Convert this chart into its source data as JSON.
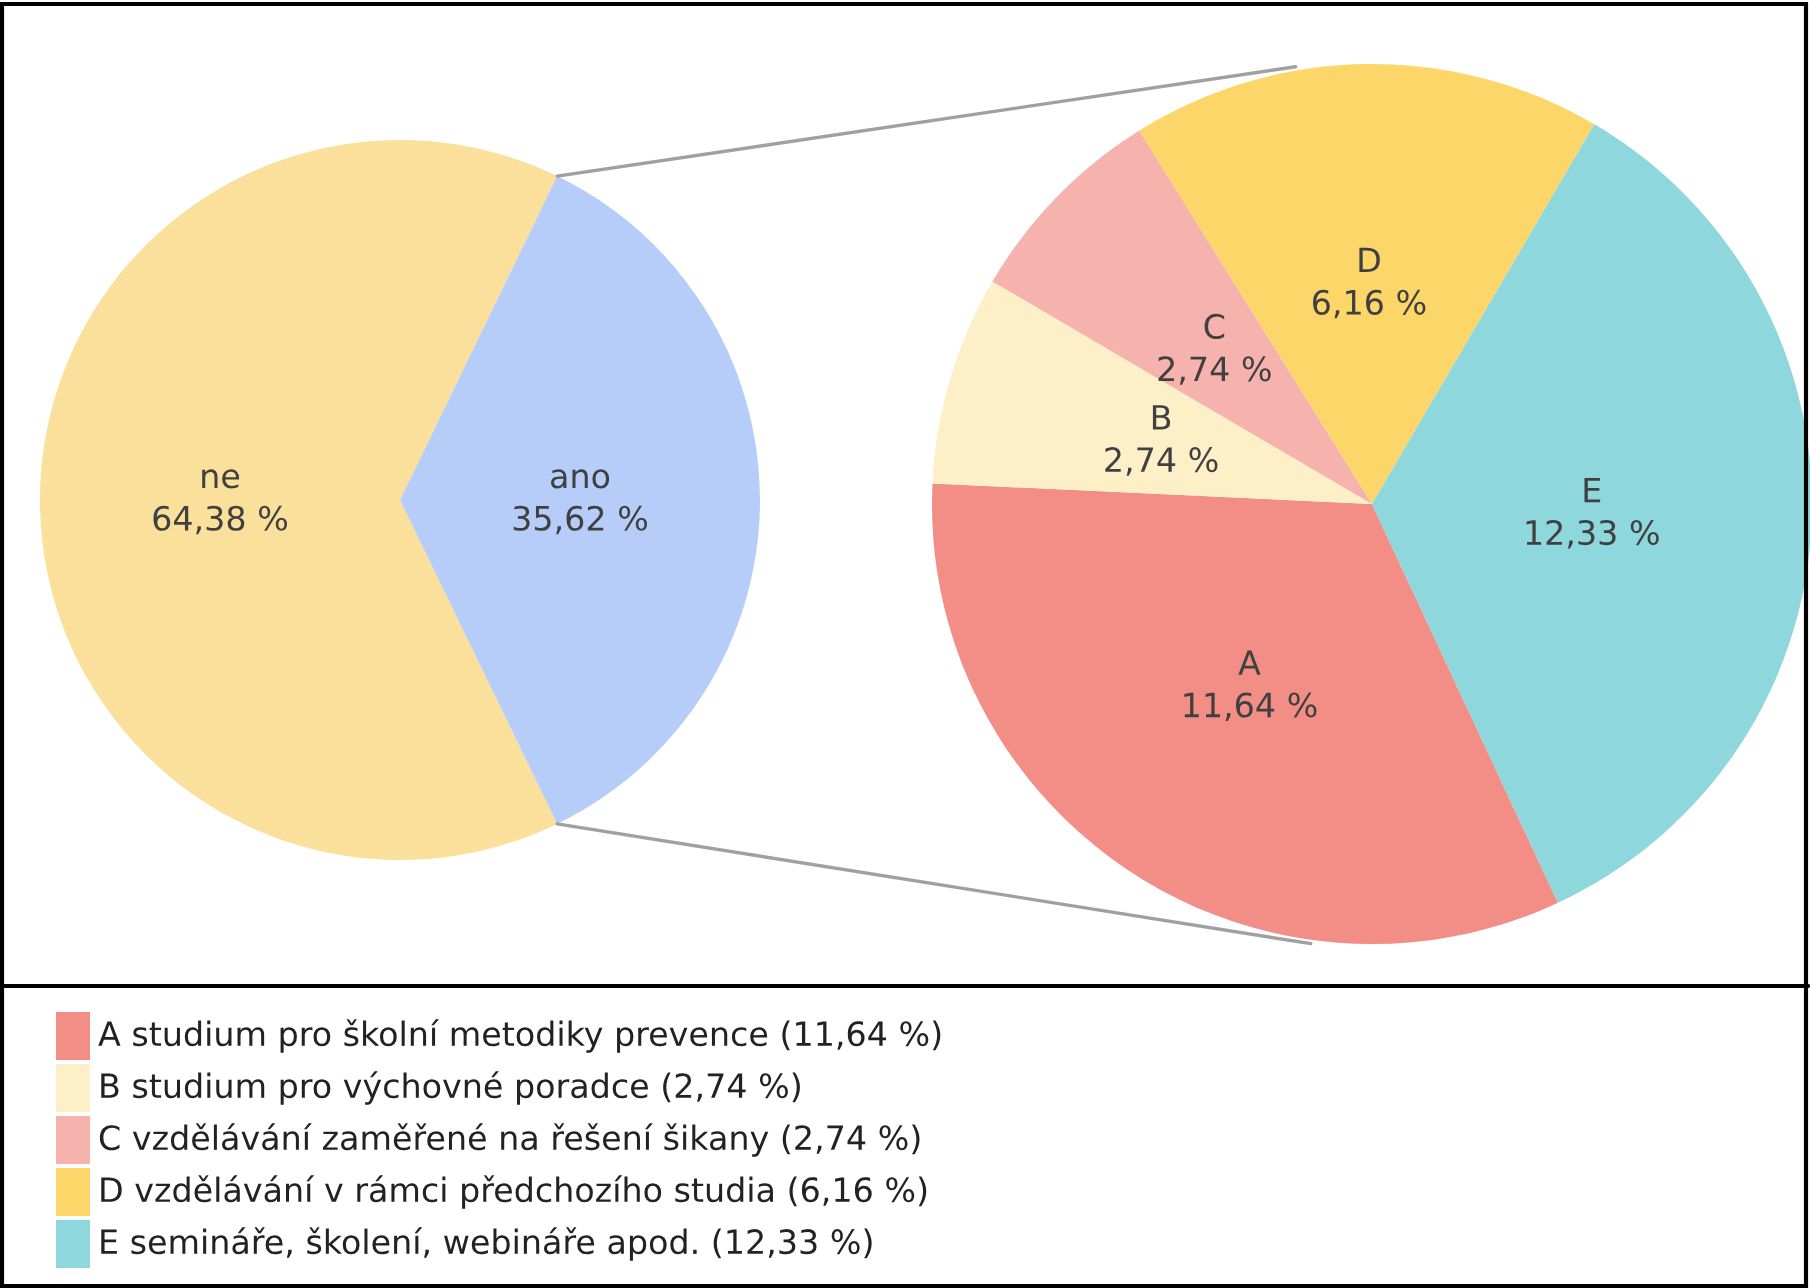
{
  "chart_data": [
    {
      "type": "pie",
      "categories": [
        "ne",
        "ano"
      ],
      "values": [
        64.38,
        35.62
      ],
      "colors": [
        "#fae09a",
        "#b5cdf8"
      ],
      "value_labels": [
        "64,38 %",
        "35,62 %"
      ]
    },
    {
      "type": "pie",
      "categories": [
        "A",
        "B",
        "C",
        "D",
        "E"
      ],
      "values": [
        11.64,
        2.74,
        2.74,
        6.16,
        12.33
      ],
      "colors": [
        "#f28e86",
        "#fdf0c8",
        "#f6b3ae",
        "#fdd66a",
        "#8ed7dc"
      ],
      "value_labels": [
        "11,64 %",
        "2,74 %",
        "2,74 %",
        "6,16 %",
        "12,33 %"
      ],
      "annotations": [
        "A studium pro školní metodiky prevence (11,64 %)",
        "B studium pro výchovné poradce (2,74 %)",
        "C vzdělávání zaměřené na řešení šikany (2,74 %)",
        "D vzdělávání v rámci předchozího studia (6,16 %)",
        "E semináře, školení, webináře apod. (12,33 %)"
      ]
    }
  ]
}
